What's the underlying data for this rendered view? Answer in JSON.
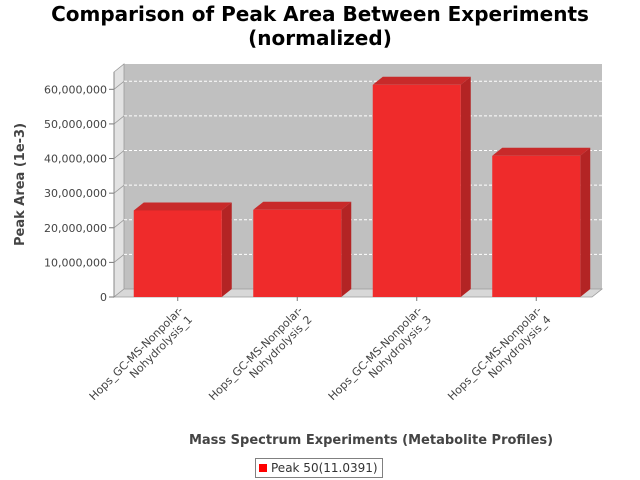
{
  "chart_data": {
    "type": "bar",
    "title_line1": "Comparison of Peak Area Between Experiments",
    "title_line2": "(normalized)",
    "xlabel": "Mass Spectrum Experiments (Metabolite Profiles)",
    "ylabel": "Peak Area (1e-3)",
    "categories": [
      [
        "Hops_GC-MS-Nonpolar-",
        "Nohydrolysis_1"
      ],
      [
        "Hops_GC-MS-Nonpolar-",
        "Nohydrolysis_2"
      ],
      [
        "Hops_GC-MS-Nonpolar-",
        "Nohydrolysis_3"
      ],
      [
        "Hops_GC-MS-Nonpolar-",
        "Nohydrolysis_4"
      ]
    ],
    "series": [
      {
        "name": "Peak 50(11.0391)",
        "values": [
          25000000,
          25200000,
          61300000,
          40800000
        ]
      }
    ],
    "ylim": [
      0,
      65000000
    ],
    "yticks": [
      0,
      10000000,
      20000000,
      30000000,
      40000000,
      50000000,
      60000000
    ],
    "ytick_labels": [
      "0",
      "10,000,000",
      "20,000,000",
      "30,000,000",
      "40,000,000",
      "50,000,000",
      "60,000,000"
    ],
    "grid": true,
    "legend_position": "bottom",
    "colors": {
      "bar_front": "#ef2b2b",
      "bar_side": "#b32424",
      "bar_top": "#c82a2a",
      "plot_bg": "#c0c0c0",
      "wall": "#e2e2e2",
      "floor": "#d8d8d8",
      "gridline": "#ffffff"
    }
  }
}
